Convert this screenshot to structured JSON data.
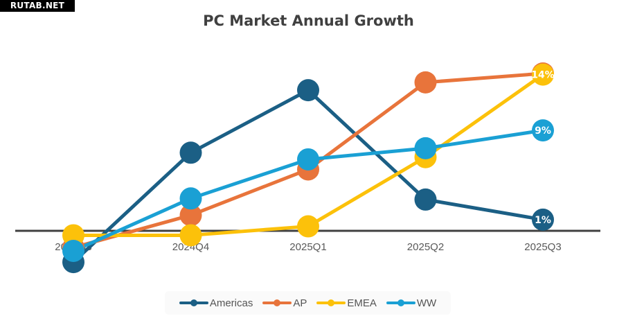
{
  "watermark": "RUTAB.NET",
  "chart_data": {
    "type": "line",
    "title": "PC Market Annual Growth",
    "xlabel": "",
    "ylabel": "",
    "categories": [
      "2024Q3",
      "2024Q4",
      "2025Q1",
      "2025Q2",
      "2025Q3"
    ],
    "ylim": [
      -3.5,
      15.5
    ],
    "grid": false,
    "legend_position": "bottom",
    "unit": "%",
    "series": [
      {
        "name": "Americas",
        "color": "#1b5f85",
        "values": [
          -2.8,
          7.0,
          12.6,
          2.8,
          1
        ],
        "end_label": "1%"
      },
      {
        "name": "AP",
        "color": "#e8743b",
        "values": [
          -1.5,
          1.4,
          5.5,
          13.3,
          14.1
        ],
        "end_label": null
      },
      {
        "name": "EMEA",
        "color": "#fcc10a",
        "values": [
          -0.4,
          -0.4,
          0.4,
          6.6,
          14
        ],
        "end_label": "14%"
      },
      {
        "name": "WW",
        "color": "#1aa0d4",
        "values": [
          -1.8,
          2.9,
          6.4,
          7.4,
          9
        ],
        "end_label": "9%"
      }
    ]
  }
}
